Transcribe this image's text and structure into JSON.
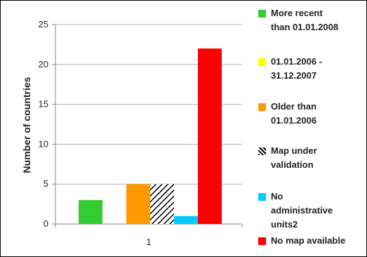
{
  "chart_data": {
    "type": "bar",
    "categories": [
      "1"
    ],
    "ylabel": "Number of countries",
    "xlabel": "",
    "title": "",
    "ylim": [
      0,
      25
    ],
    "yticks": [
      0,
      5,
      10,
      15,
      20,
      25
    ],
    "grid": "horizontal",
    "legend_position": "right",
    "series": [
      {
        "name": "More recent than 01.01.2008",
        "values": [
          3
        ],
        "color": "#33cc33",
        "pattern": "solid"
      },
      {
        "name": "01.01.2006 - 31.12.2007",
        "values": [
          0
        ],
        "color": "#ffff00",
        "pattern": "solid"
      },
      {
        "name": "Older than 01.01.2006",
        "values": [
          5
        ],
        "color": "#ff9900",
        "pattern": "solid"
      },
      {
        "name": "Map under validation",
        "values": [
          5
        ],
        "color": "#000000",
        "pattern": "diagonal-hatch"
      },
      {
        "name": "No administrative units2",
        "values": [
          1
        ],
        "color": "#00ccff",
        "pattern": "solid"
      },
      {
        "name": "No map available",
        "values": [
          22
        ],
        "color": "#ff0000",
        "pattern": "solid"
      }
    ]
  },
  "legend": {
    "items": [
      {
        "lines": [
          "More recent",
          "than 01.01.2008"
        ]
      },
      {
        "lines": [
          "01.01.2006 -",
          "31.12.2007"
        ]
      },
      {
        "lines": [
          "Older than",
          "01.01.2006"
        ]
      },
      {
        "lines": [
          "Map under",
          "validation"
        ]
      },
      {
        "lines": [
          "No",
          "administrative",
          "units2"
        ]
      },
      {
        "lines": [
          "No map available"
        ]
      }
    ]
  }
}
